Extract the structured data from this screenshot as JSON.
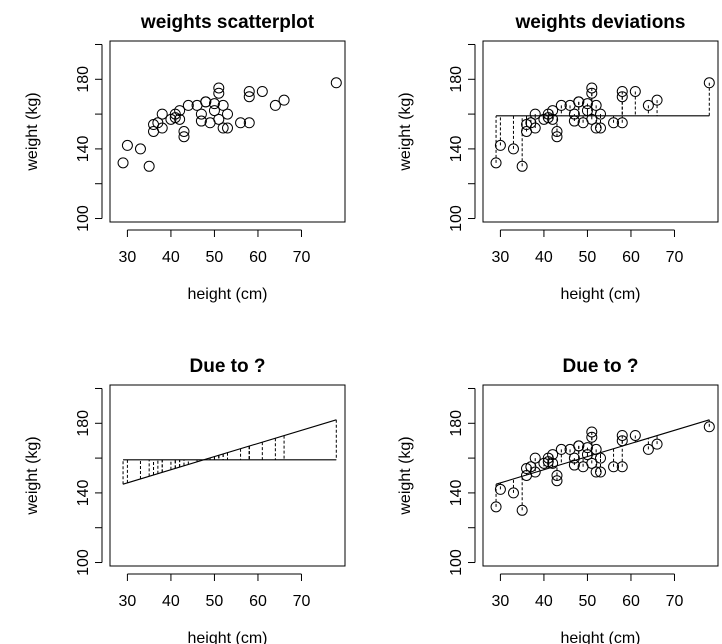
{
  "chart_data": [
    {
      "type": "scatter",
      "title": "weights scatterplot",
      "xlabel": "height (cm)",
      "ylabel": "weight (kg)",
      "xticks": [
        30,
        40,
        50,
        60,
        70
      ],
      "yticks": [
        100,
        140,
        180
      ],
      "xlim": [
        26,
        80
      ],
      "ylim": [
        98,
        202
      ],
      "overlays": []
    },
    {
      "type": "scatter",
      "title": "weights deviations",
      "xlabel": "height (cm)",
      "ylabel": "weight (kg)",
      "xticks": [
        30,
        40,
        50,
        60,
        70
      ],
      "yticks": [
        100,
        140,
        180
      ],
      "xlim": [
        26,
        80
      ],
      "ylim": [
        98,
        202
      ],
      "overlays": [
        "mean-line",
        "deviations-to-mean"
      ]
    },
    {
      "type": "line",
      "title": "Due to ?",
      "xlabel": "height (cm)",
      "ylabel": "weight (kg)",
      "xticks": [
        30,
        40,
        50,
        60,
        70
      ],
      "yticks": [
        100,
        140,
        180
      ],
      "xlim": [
        26,
        80
      ],
      "ylim": [
        98,
        202
      ],
      "overlays": [
        "mean-line",
        "fit-line",
        "fit-to-mean-segments"
      ]
    },
    {
      "type": "scatter",
      "title": "Due to ?",
      "xlabel": "height (cm)",
      "ylabel": "weight (kg)",
      "xticks": [
        30,
        40,
        50,
        60,
        70
      ],
      "yticks": [
        100,
        140,
        180
      ],
      "xlim": [
        26,
        80
      ],
      "ylim": [
        98,
        202
      ],
      "overlays": [
        "fit-line",
        "residuals-to-fit"
      ]
    }
  ],
  "data": {
    "x": [
      29,
      30,
      33,
      35,
      36,
      36,
      37,
      38,
      38,
      40,
      41,
      41,
      42,
      42,
      43,
      43,
      44,
      46,
      47,
      47,
      48,
      48,
      49,
      50,
      50,
      51,
      51,
      51,
      52,
      52,
      53,
      53,
      56,
      58,
      58,
      58,
      61,
      64,
      66,
      78
    ],
    "y": [
      132,
      142,
      140,
      130,
      150,
      154,
      155,
      160,
      152,
      157,
      158,
      160,
      162,
      157,
      147,
      150,
      165,
      165,
      160,
      156,
      167,
      167,
      155,
      166,
      162,
      157,
      175,
      172,
      152,
      165,
      160,
      152,
      155,
      173,
      170,
      155,
      173,
      165,
      168,
      178
    ],
    "mean_weight": 159,
    "fit": {
      "x_start": 29,
      "y_start": 145,
      "x_end": 78,
      "y_end": 182
    }
  }
}
